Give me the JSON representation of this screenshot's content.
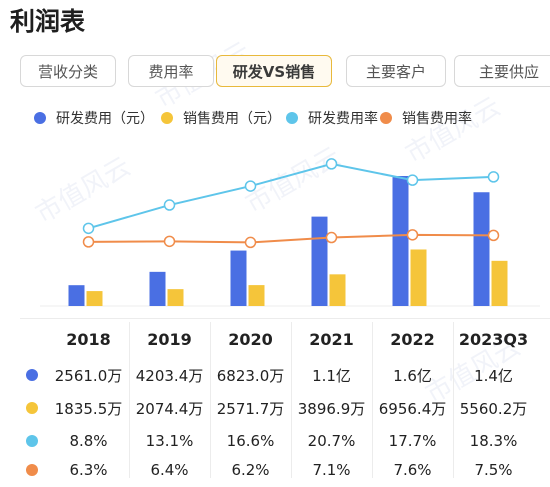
{
  "page": {
    "title": "利润表"
  },
  "tabs": [
    {
      "label": "营收分类",
      "active": false
    },
    {
      "label": "费用率",
      "active": false
    },
    {
      "label": "研发VS销售",
      "active": true
    },
    {
      "label": "主要客户",
      "active": false
    },
    {
      "label": "主要供应",
      "active": false
    }
  ],
  "legend": [
    {
      "label": "研发费用（元）",
      "color": "#4a6fe3",
      "shape": "square"
    },
    {
      "label": "销售费用（元）",
      "color": "#f5c53a",
      "shape": "square"
    },
    {
      "label": "研发费用率",
      "color": "#5ec5ea",
      "shape": "circle"
    },
    {
      "label": "销售费用率",
      "color": "#f08c4a",
      "shape": "circle"
    }
  ],
  "watermark": "市值风云",
  "chart_data": {
    "type": "bar",
    "categories": [
      "2018",
      "2019",
      "2020",
      "2021",
      "2022",
      "2023Q3"
    ],
    "series": [
      {
        "name": "研发费用（元）",
        "type": "bar",
        "values": [
          25610000,
          42034000,
          68230000,
          110000000,
          160000000,
          140000000
        ],
        "color": "#4a6fe3"
      },
      {
        "name": "销售费用（元）",
        "type": "bar",
        "values": [
          18355000,
          20744000,
          25717000,
          38969000,
          69564000,
          55602000
        ],
        "color": "#f5c53a"
      },
      {
        "name": "研发费用率",
        "type": "line",
        "values": [
          8.8,
          13.1,
          16.6,
          20.7,
          17.7,
          18.3
        ],
        "color": "#5ec5ea"
      },
      {
        "name": "销售费用率",
        "type": "line",
        "values": [
          6.3,
          6.4,
          6.2,
          7.1,
          7.6,
          7.5
        ],
        "color": "#f08c4a"
      }
    ]
  },
  "table": {
    "years": [
      "2018",
      "2019",
      "2020",
      "2021",
      "2022",
      "2023Q3"
    ],
    "rows": [
      {
        "color": "#4a6fe3",
        "values": [
          "2561.0万",
          "4203.4万",
          "6823.0万",
          "1.1亿",
          "1.6亿",
          "1.4亿"
        ]
      },
      {
        "color": "#f5c53a",
        "values": [
          "1835.5万",
          "2074.4万",
          "2571.7万",
          "3896.9万",
          "6956.4万",
          "5560.2万"
        ]
      },
      {
        "color": "#5ec5ea",
        "values": [
          "8.8%",
          "13.1%",
          "16.6%",
          "20.7%",
          "17.7%",
          "18.3%"
        ]
      },
      {
        "color": "#f08c4a",
        "values": [
          "6.3%",
          "6.4%",
          "6.2%",
          "7.1%",
          "7.6%",
          "7.5%"
        ]
      }
    ]
  }
}
